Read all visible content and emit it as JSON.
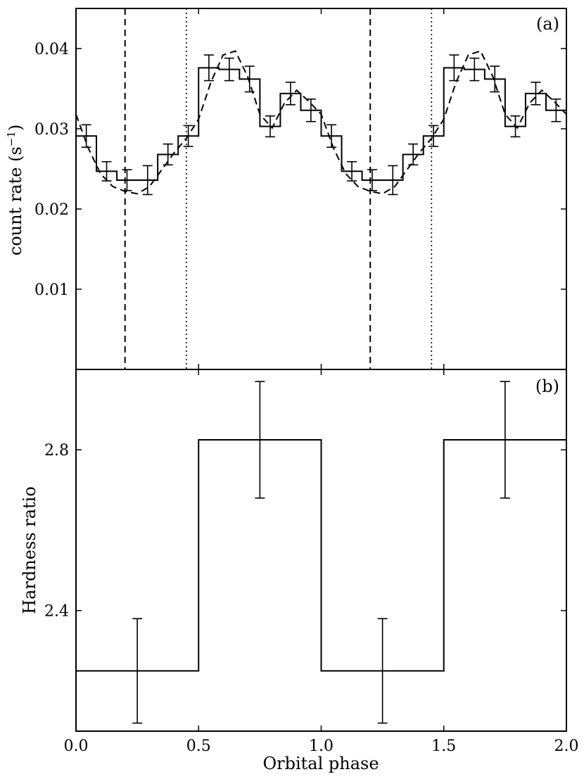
{
  "chart_data": [
    {
      "type": "line",
      "panel_label": "(a)",
      "ylabel": "count rate (s",
      "ylabel_sup": "−1",
      "ylabel_close": ")",
      "xlim": [
        0,
        2
      ],
      "ylim": [
        0,
        0.045
      ],
      "y_ticks": [
        0.01,
        0.02,
        0.03,
        0.04
      ],
      "y_tick_labels": [
        "0.01",
        "0.02",
        "0.03",
        "0.04"
      ],
      "histogram_edges": [
        0,
        0.0833,
        0.1667,
        0.25,
        0.3333,
        0.4167,
        0.5,
        0.5833,
        0.6667,
        0.75,
        0.8333,
        0.9167,
        1.0,
        1.0833,
        1.1667,
        1.25,
        1.3333,
        1.4167,
        1.5,
        1.5833,
        1.6667,
        1.75,
        1.8333,
        1.9167,
        2.0
      ],
      "histogram_values": [
        0.0291,
        0.0247,
        0.0236,
        0.0236,
        0.0268,
        0.0291,
        0.0376,
        0.0374,
        0.0362,
        0.0303,
        0.0344,
        0.0323,
        0.0291,
        0.0247,
        0.0236,
        0.0236,
        0.0268,
        0.0291,
        0.0376,
        0.0374,
        0.0362,
        0.0303,
        0.0344,
        0.0323
      ],
      "error_bars": [
        {
          "x": 0.042,
          "y": 0.0291,
          "err": 0.0014
        },
        {
          "x": 0.125,
          "y": 0.0247,
          "err": 0.0012
        },
        {
          "x": 0.208,
          "y": 0.0236,
          "err": 0.0013
        },
        {
          "x": 0.292,
          "y": 0.0236,
          "err": 0.0018
        },
        {
          "x": 0.375,
          "y": 0.0268,
          "err": 0.0013
        },
        {
          "x": 0.458,
          "y": 0.0291,
          "err": 0.0013
        },
        {
          "x": 0.542,
          "y": 0.0376,
          "err": 0.0016
        },
        {
          "x": 0.625,
          "y": 0.0374,
          "err": 0.0014
        },
        {
          "x": 0.708,
          "y": 0.0362,
          "err": 0.0016
        },
        {
          "x": 0.792,
          "y": 0.0303,
          "err": 0.0013
        },
        {
          "x": 0.875,
          "y": 0.0344,
          "err": 0.0014
        },
        {
          "x": 0.958,
          "y": 0.0323,
          "err": 0.0014
        },
        {
          "x": 1.042,
          "y": 0.0291,
          "err": 0.0014
        },
        {
          "x": 1.125,
          "y": 0.0247,
          "err": 0.0012
        },
        {
          "x": 1.208,
          "y": 0.0236,
          "err": 0.0013
        },
        {
          "x": 1.292,
          "y": 0.0236,
          "err": 0.0018
        },
        {
          "x": 1.375,
          "y": 0.0268,
          "err": 0.0013
        },
        {
          "x": 1.458,
          "y": 0.0291,
          "err": 0.0013
        },
        {
          "x": 1.542,
          "y": 0.0376,
          "err": 0.0016
        },
        {
          "x": 1.625,
          "y": 0.0374,
          "err": 0.0014
        },
        {
          "x": 1.708,
          "y": 0.0362,
          "err": 0.0016
        },
        {
          "x": 1.792,
          "y": 0.0303,
          "err": 0.0013
        },
        {
          "x": 1.875,
          "y": 0.0344,
          "err": 0.0014
        },
        {
          "x": 1.958,
          "y": 0.0323,
          "err": 0.0014
        }
      ],
      "model_curve": {
        "x": [
          0,
          0.05,
          0.1,
          0.15,
          0.2,
          0.25,
          0.3,
          0.35,
          0.4,
          0.45,
          0.5,
          0.55,
          0.6,
          0.65,
          0.7,
          0.75,
          0.8,
          0.85,
          0.9,
          0.95,
          1.0,
          1.05,
          1.1,
          1.15,
          1.2,
          1.25,
          1.3,
          1.35,
          1.4,
          1.45,
          1.5,
          1.55,
          1.6,
          1.65,
          1.7,
          1.75,
          1.8,
          1.85,
          1.9,
          1.95,
          2.0
        ],
        "y": [
          0.0318,
          0.0276,
          0.0244,
          0.0228,
          0.0222,
          0.0219,
          0.0228,
          0.0249,
          0.027,
          0.0288,
          0.0312,
          0.0358,
          0.0392,
          0.0397,
          0.0365,
          0.0318,
          0.0301,
          0.0332,
          0.0348,
          0.0334,
          0.0318,
          0.0276,
          0.0244,
          0.0228,
          0.0222,
          0.0219,
          0.0228,
          0.0249,
          0.027,
          0.0288,
          0.0312,
          0.0358,
          0.0392,
          0.0397,
          0.0365,
          0.0318,
          0.0301,
          0.0332,
          0.0348,
          0.0334,
          0.0318
        ],
        "style": "dashed"
      },
      "vlines_dashed": [
        0.2,
        1.2
      ],
      "vlines_dotted": [
        0.45,
        1.45
      ]
    },
    {
      "type": "line",
      "panel_label": "(b)",
      "xlabel": "Orbital phase",
      "ylabel": "Hardness ratio",
      "xlim": [
        0,
        2
      ],
      "ylim": [
        2.1,
        3.0
      ],
      "y_ticks": [
        2.4,
        2.8
      ],
      "y_tick_labels": [
        "2.4",
        "2.8"
      ],
      "x_ticks": [
        0.0,
        0.5,
        1.0,
        1.5,
        2.0
      ],
      "x_tick_labels": [
        "0.0",
        "0.5",
        "1.0",
        "1.5",
        "2.0"
      ],
      "histogram_edges": [
        0,
        0.5,
        1.0,
        1.5,
        2.0
      ],
      "histogram_values": [
        2.25,
        2.825,
        2.25,
        2.825
      ],
      "error_bars": [
        {
          "x": 0.25,
          "y": 2.25,
          "err": 0.13
        },
        {
          "x": 0.75,
          "y": 2.825,
          "err": 0.145
        },
        {
          "x": 1.25,
          "y": 2.25,
          "err": 0.13
        },
        {
          "x": 1.75,
          "y": 2.825,
          "err": 0.145
        }
      ]
    }
  ]
}
